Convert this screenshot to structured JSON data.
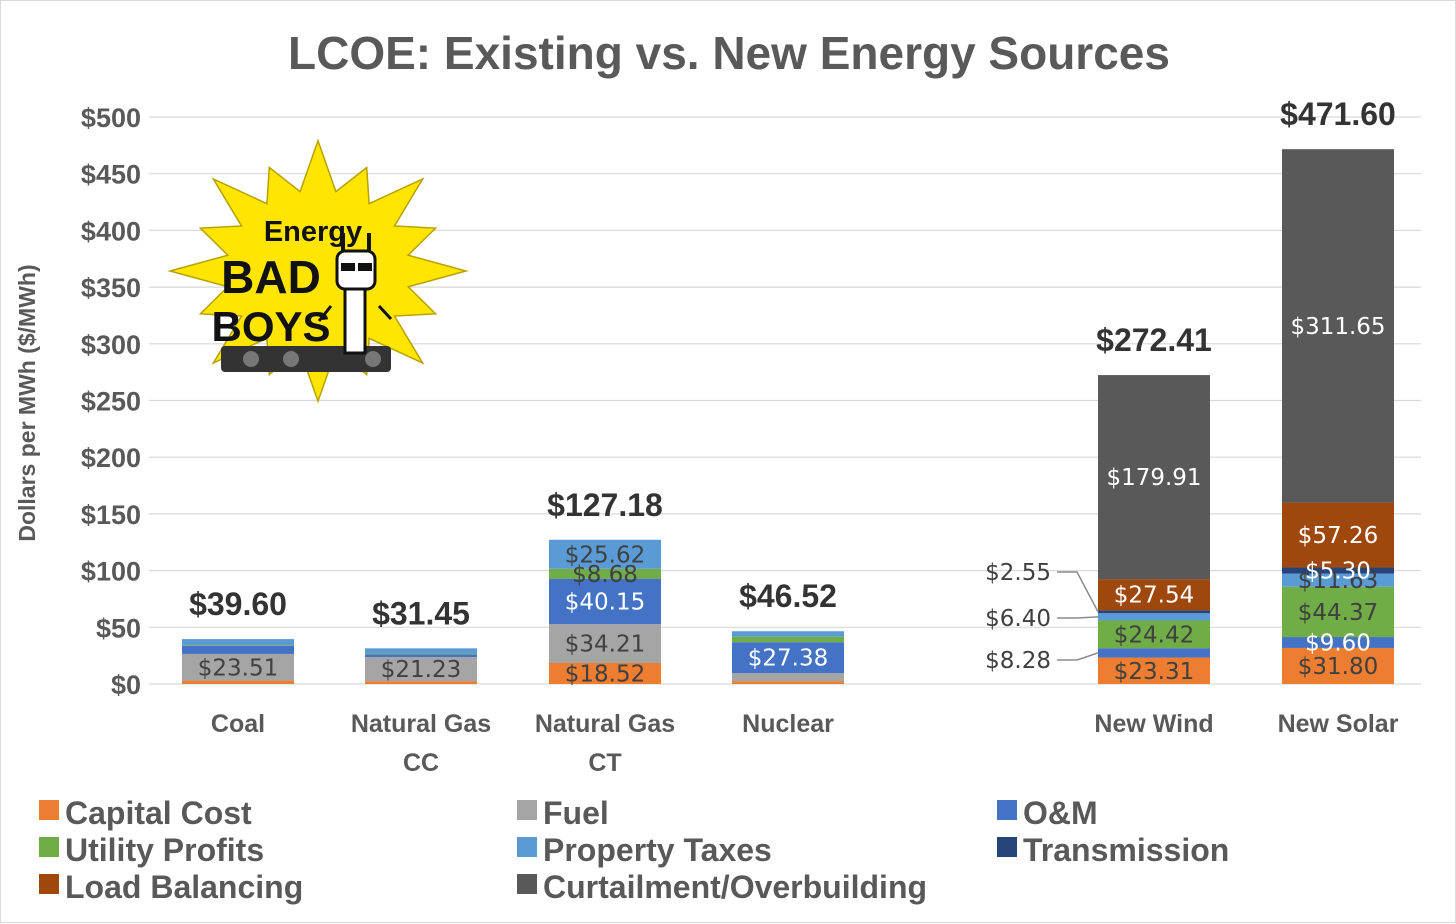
{
  "chart_data": {
    "type": "bar",
    "stacked": true,
    "title": "LCOE: Existing vs. New Energy Sources",
    "ylabel": "Dollars per MWh ($/MWh)",
    "xlabel": "",
    "ylim": [
      0,
      500
    ],
    "yticks": [
      "$0",
      "$50",
      "$100",
      "$150",
      "$200",
      "$250",
      "$300",
      "$350",
      "$400",
      "$450",
      "$500"
    ],
    "grid": true,
    "legend_position": "bottom",
    "categories": [
      [
        "Coal"
      ],
      [
        "Natural Gas",
        "CC"
      ],
      [
        "Natural Gas",
        "CT"
      ],
      [
        "Nuclear"
      ],
      [
        "New Wind"
      ],
      [
        "New Solar"
      ]
    ],
    "totals": [
      "$39.60",
      "$31.45",
      "$127.18",
      "$46.52",
      "$272.41",
      "$471.60"
    ],
    "series": [
      {
        "name": "Capital Cost",
        "color": "#ED7D31",
        "labelColor": "#404040",
        "values": [
          3.0,
          2.5,
          18.52,
          2.5,
          23.31,
          31.8
        ],
        "labels": [
          "",
          "",
          "$18.52",
          "",
          "$23.31",
          "$31.80"
        ]
      },
      {
        "name": "Fuel",
        "color": "#A5A5A5",
        "labelColor": "#404040",
        "values": [
          23.51,
          21.23,
          34.21,
          7.0,
          0,
          0
        ],
        "labels": [
          "$23.51",
          "$21.23",
          "$34.21",
          "",
          "",
          ""
        ]
      },
      {
        "name": "O&M",
        "color": "#4472C4",
        "labelColor": "#ffffff",
        "values": [
          7.0,
          2.5,
          40.15,
          27.38,
          8.28,
          9.6
        ],
        "labels": [
          "",
          "",
          "$40.15",
          "$27.38",
          "",
          "$9.60"
        ]
      },
      {
        "name": "Utility Profits",
        "color": "#70AD47",
        "labelColor": "#404040",
        "values": [
          0.6,
          0.6,
          8.68,
          4.8,
          24.42,
          44.37
        ],
        "labels": [
          "",
          "",
          "$8.68",
          "",
          "$24.42",
          "$44.37"
        ]
      },
      {
        "name": "Property Taxes",
        "color": "#5B9BD5",
        "labelColor": "#404040",
        "values": [
          5.49,
          4.62,
          25.62,
          4.84,
          6.4,
          11.63
        ],
        "labels": [
          "",
          "",
          "$25.62",
          "",
          "",
          "$11.63"
        ]
      },
      {
        "name": "Transmission",
        "color": "#264478",
        "labelColor": "#ffffff",
        "values": [
          0,
          0,
          0,
          0,
          2.55,
          5.3
        ],
        "labels": [
          "",
          "",
          "",
          "",
          "",
          "$5.30"
        ]
      },
      {
        "name": "Load Balancing",
        "color": "#9E480E",
        "labelColor": "#ffffff",
        "values": [
          0,
          0,
          0,
          0,
          27.54,
          57.26
        ],
        "labels": [
          "",
          "",
          "",
          "",
          "$27.54",
          "$57.26"
        ]
      },
      {
        "name": "Curtailment/Overbuilding",
        "color": "#595959",
        "labelColor": "#ffffff",
        "values": [
          0,
          0,
          0,
          0,
          179.91,
          311.65
        ],
        "labels": [
          "",
          "",
          "",
          "",
          "$179.91",
          "$311.65"
        ]
      }
    ],
    "callouts": [
      {
        "text": "$2.55",
        "category": 4,
        "series": 5
      },
      {
        "text": "$6.40",
        "category": 4,
        "series": 4
      },
      {
        "text": "$8.28",
        "category": 4,
        "series": 2
      }
    ]
  },
  "logo": {
    "line1": "Energy",
    "line2": "BAD",
    "line3": "BOYS"
  }
}
